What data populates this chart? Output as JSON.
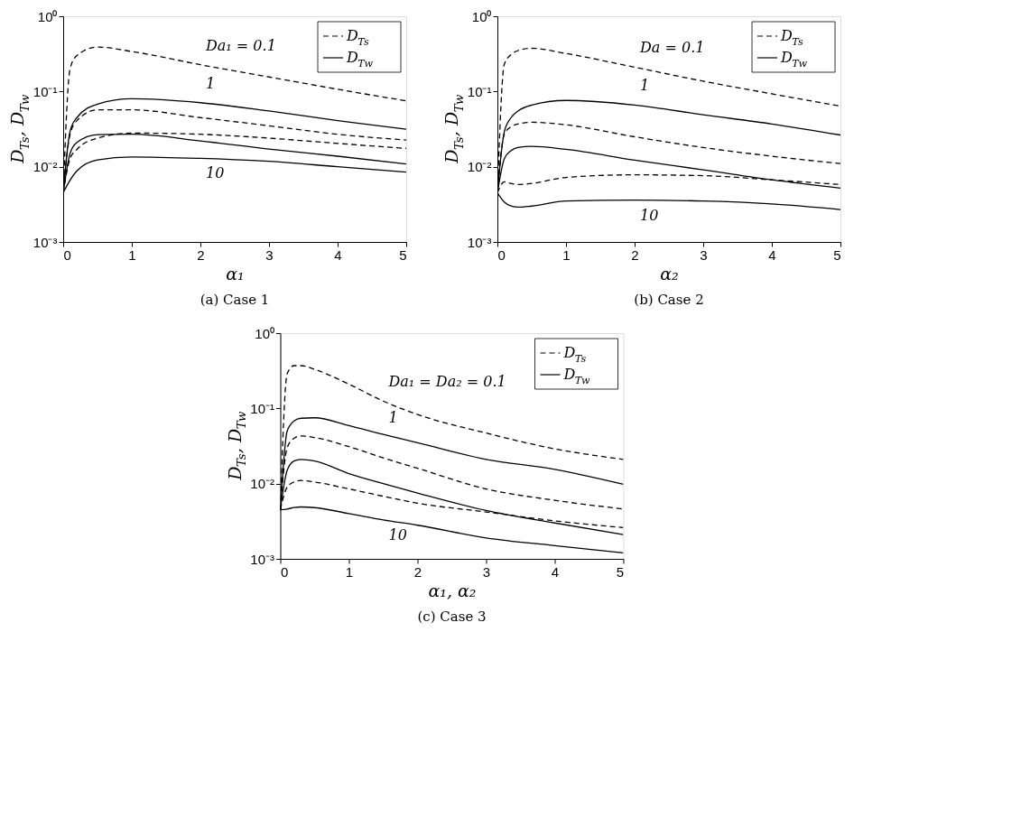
{
  "chart_data": [
    {
      "type": "line",
      "title": "(a)  Case 1",
      "xlabel": "α₁",
      "ylabel": "D$_{Ts}$, D$_{Tw}$",
      "legend": "top right",
      "log": "y",
      "xlim": [
        0,
        5
      ],
      "ylim": [
        0.001,
        1
      ],
      "xticks": [
        0,
        1,
        2,
        3,
        4,
        5
      ],
      "yticks": [
        {
          "value": 0.001,
          "label": "10⁻³"
        },
        {
          "value": 0.01,
          "label": "10⁻²"
        },
        {
          "value": 0.1,
          "label": "10⁻¹"
        },
        {
          "value": 1,
          "label": "10⁰"
        }
      ],
      "x": [
        0,
        0.1,
        0.2,
        0.5,
        1,
        2,
        3,
        4,
        5
      ],
      "series": [
        {
          "name": "D$_{Ts}$",
          "color": "#000000",
          "line_style": "dashed",
          "values": [
            0.0045,
            0.2,
            0.3,
            0.39,
            0.34,
            0.227,
            0.156,
            0.107,
            0.075
          ]
        },
        {
          "name": "D$_{Tw}$",
          "color": "#000000",
          "line_style": "solid",
          "values": [
            0.0045,
            0.0295,
            0.045,
            0.068,
            0.08,
            0.071,
            0.055,
            0.041,
            0.0315
          ]
        },
        {
          "color": "#000000",
          "line_style": "dashed",
          "values": [
            0.0045,
            0.027,
            0.041,
            0.057,
            0.057,
            0.045,
            0.035,
            0.027,
            0.0226
          ]
        },
        {
          "color": "#000000",
          "line_style": "solid",
          "values": [
            0.0045,
            0.015,
            0.021,
            0.0267,
            0.027,
            0.022,
            0.0172,
            0.0138,
            0.0109
          ]
        },
        {
          "color": "#000000",
          "line_style": "dashed",
          "values": [
            0.0045,
            0.0128,
            0.017,
            0.024,
            0.028,
            0.027,
            0.024,
            0.0204,
            0.0175
          ]
        },
        {
          "color": "#000000",
          "line_style": "solid",
          "values": [
            0.0045,
            0.0066,
            0.0088,
            0.0123,
            0.0135,
            0.0129,
            0.0118,
            0.01,
            0.0085
          ]
        }
      ],
      "annotations": [
        "Da₁ = 0.1",
        "1",
        "10"
      ]
    },
    {
      "type": "line",
      "title": "(b)  Case 2",
      "xlabel": "α₂",
      "ylabel": "D$_{Ts}$, D$_{Tw}$",
      "legend": "top right",
      "log": "y",
      "xlim": [
        0,
        5
      ],
      "ylim": [
        0.001,
        1
      ],
      "xticks": [
        0,
        1,
        2,
        3,
        4,
        5
      ],
      "yticks": [
        {
          "value": 0.001,
          "label": "10⁻³"
        },
        {
          "value": 0.01,
          "label": "10⁻²"
        },
        {
          "value": 0.1,
          "label": "10⁻¹"
        },
        {
          "value": 1,
          "label": "10⁰"
        }
      ],
      "x": [
        0,
        0.1,
        0.2,
        0.3,
        0.5,
        1,
        2,
        3,
        4,
        5
      ],
      "series": [
        {
          "name": "D$_{Ts}$",
          "color": "#000000",
          "line_style": "dashed",
          "values": [
            0.0045,
            0.23,
            0.31,
            0.35,
            0.375,
            0.32,
            0.21,
            0.137,
            0.093,
            0.064
          ]
        },
        {
          "name": "D$_{Tw}$",
          "color": "#000000",
          "line_style": "solid",
          "values": [
            0.0045,
            0.029,
            0.045,
            0.055,
            0.066,
            0.076,
            0.066,
            0.049,
            0.037,
            0.0264
          ]
        },
        {
          "color": "#000000",
          "line_style": "dashed",
          "values": [
            0.0045,
            0.027,
            0.034,
            0.037,
            0.039,
            0.036,
            0.025,
            0.018,
            0.0138,
            0.011
          ]
        },
        {
          "color": "#000000",
          "line_style": "solid",
          "values": [
            0.0045,
            0.0127,
            0.0164,
            0.018,
            0.0186,
            0.017,
            0.0122,
            0.0091,
            0.0067,
            0.0052
          ]
        },
        {
          "color": "#000000",
          "line_style": "dashed",
          "values": [
            0.0045,
            0.0063,
            0.006,
            0.0058,
            0.006,
            0.0072,
            0.0078,
            0.0076,
            0.0067,
            0.0058
          ]
        },
        {
          "color": "#000000",
          "line_style": "solid",
          "values": [
            0.0045,
            0.0034,
            0.003,
            0.0029,
            0.003,
            0.0035,
            0.0036,
            0.0035,
            0.0032,
            0.0027
          ]
        }
      ],
      "annotations": [
        "Da = 0.1",
        "1",
        "10"
      ]
    },
    {
      "type": "line",
      "title": "(c)  Case 3",
      "xlabel": "α₁, α₂",
      "ylabel": "D$_{Ts}$, D$_{Tw}$",
      "legend": "top right",
      "log": "y",
      "xlim": [
        0,
        5
      ],
      "ylim": [
        0.001,
        1
      ],
      "xticks": [
        0,
        1,
        2,
        3,
        4,
        5
      ],
      "yticks": [
        {
          "value": 0.001,
          "label": "10⁻³"
        },
        {
          "value": 0.01,
          "label": "10⁻²"
        },
        {
          "value": 0.1,
          "label": "10⁻¹"
        },
        {
          "value": 1,
          "label": "10⁰"
        }
      ],
      "x": [
        0,
        0.1,
        0.2,
        0.3,
        0.5,
        1,
        1.5,
        2,
        3,
        4,
        5
      ],
      "series": [
        {
          "name": "D$_{Ts}$",
          "color": "#000000",
          "line_style": "dashed",
          "values": [
            0.0045,
            0.29,
            0.37,
            0.37,
            0.33,
            0.21,
            0.125,
            0.083,
            0.047,
            0.029,
            0.021
          ]
        },
        {
          "name": "D$_{Tw}$",
          "color": "#000000",
          "line_style": "solid",
          "values": [
            0.0045,
            0.05,
            0.068,
            0.074,
            0.075,
            0.059,
            0.045,
            0.035,
            0.021,
            0.0155,
            0.0098
          ]
        },
        {
          "color": "#000000",
          "line_style": "dashed",
          "values": [
            0.0045,
            0.03,
            0.04,
            0.043,
            0.041,
            0.031,
            0.022,
            0.016,
            0.0085,
            0.006,
            0.0046
          ]
        },
        {
          "color": "#000000",
          "line_style": "solid",
          "values": [
            0.0045,
            0.015,
            0.02,
            0.021,
            0.02,
            0.0136,
            0.01,
            0.0075,
            0.0044,
            0.003,
            0.0021
          ]
        },
        {
          "color": "#000000",
          "line_style": "dashed",
          "values": [
            0.0045,
            0.009,
            0.0105,
            0.011,
            0.0105,
            0.0085,
            0.0068,
            0.0055,
            0.0042,
            0.0032,
            0.0026
          ]
        },
        {
          "color": "#000000",
          "line_style": "solid",
          "values": [
            0.0045,
            0.0046,
            0.0048,
            0.0049,
            0.0048,
            0.004,
            0.0033,
            0.0028,
            0.0019,
            0.0015,
            0.0012
          ]
        }
      ],
      "annotations": [
        "Da₁ = Da₂ = 0.1",
        "1",
        "10"
      ]
    }
  ]
}
